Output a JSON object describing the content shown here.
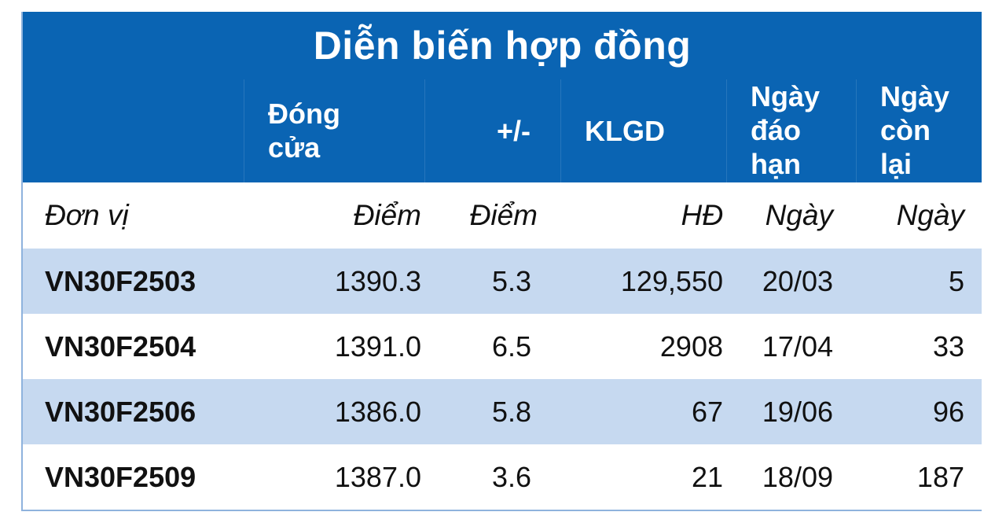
{
  "title": "Diễn biến hợp đồng",
  "headers": {
    "close": [
      "Đóng",
      "cửa"
    ],
    "change": "+/-",
    "volume": "KLGD",
    "expiry": [
      "Ngày",
      "đáo",
      "hạn"
    ],
    "remaining": [
      "Ngày",
      "còn",
      "lại"
    ]
  },
  "units": {
    "label": "Đơn vị",
    "close": "Điểm",
    "change": "Điểm",
    "volume": "HĐ",
    "expiry": "Ngày",
    "remaining": "Ngày"
  },
  "rows": [
    {
      "contract": "VN30F2503",
      "close": "1390.3",
      "change": "5.3",
      "volume": "129,550",
      "expiry": "20/03",
      "remaining": "5"
    },
    {
      "contract": "VN30F2504",
      "close": "1391.0",
      "change": "6.5",
      "volume": "2908",
      "expiry": "17/04",
      "remaining": "33"
    },
    {
      "contract": "VN30F2506",
      "close": "1386.0",
      "change": "5.8",
      "volume": "67",
      "expiry": "19/06",
      "remaining": "96"
    },
    {
      "contract": "VN30F2509",
      "close": "1387.0",
      "change": "3.6",
      "volume": "21",
      "expiry": "18/09",
      "remaining": "187"
    }
  ],
  "colors": {
    "header_bg": "#0a64b3",
    "band_bg": "#c6d9f0"
  }
}
